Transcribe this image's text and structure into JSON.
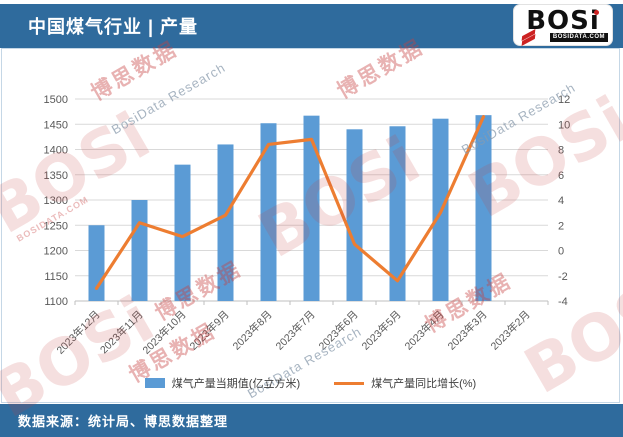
{
  "header": {
    "title": "中国煤气行业 | 产量",
    "logo": {
      "text": "BOSi",
      "domain": "BOSIDATA.COM"
    }
  },
  "footer": {
    "source": "数据来源：统计局、博思数据整理"
  },
  "watermark": {
    "cn": "博思数据",
    "en": "BosiData Research",
    "logo": "BOSi",
    "domain": "BOSIDATA.COM"
  },
  "colors": {
    "header_bg": "#2F6B9D",
    "bar": "#5B9BD5",
    "line": "#ED7D31",
    "grid": "#D9D9D9",
    "axis_line": "#BFBFBF",
    "axis_text": "#595959",
    "watermark_red": "#C84040",
    "watermark_gray": "#8A9BAD"
  },
  "chart_data": {
    "type": "bar",
    "subtype": "bar-line-combo",
    "categories": [
      "2023年12月",
      "2023年11月",
      "2023年10月",
      "2023年9月",
      "2023年8月",
      "2023年7月",
      "2023年6月",
      "2023年5月",
      "2023年4月",
      "2023年3月",
      "2023年2月"
    ],
    "series": [
      {
        "name": "煤气产量当期值(亿立方米)",
        "type": "bar",
        "axis": "left",
        "color": "#5B9BD5",
        "values": [
          1250,
          1300,
          1370,
          1410,
          1452,
          1467,
          1440,
          1446,
          1461,
          1468,
          null
        ]
      },
      {
        "name": "煤气产量同比增长(%)",
        "type": "line",
        "axis": "right",
        "color": "#ED7D31",
        "values": [
          -3,
          2.2,
          1.1,
          2.8,
          8.4,
          8.8,
          0.5,
          -2.4,
          3,
          10.6,
          null
        ]
      }
    ],
    "left_axis": {
      "min": 1100,
      "max": 1500,
      "step": 50,
      "ticks": [
        1100,
        1150,
        1200,
        1250,
        1300,
        1350,
        1400,
        1450,
        1500
      ]
    },
    "right_axis": {
      "min": -4,
      "max": 12,
      "step": 2,
      "ticks": [
        -4,
        -2,
        0,
        2,
        4,
        6,
        8,
        10,
        12
      ]
    },
    "grid": true,
    "legend_position": "bottom"
  }
}
